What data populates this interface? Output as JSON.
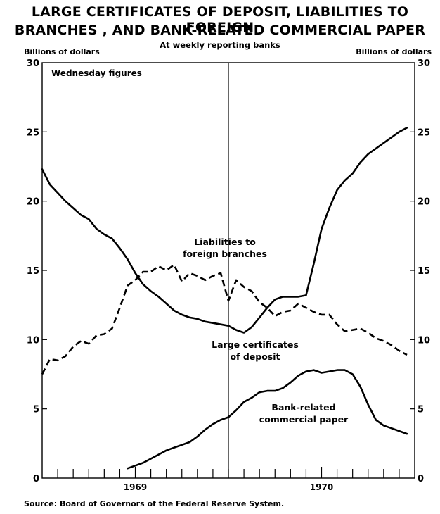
{
  "chart_data": {
    "type": "line",
    "title_line1": "LARGE CERTIFICATES OF DEPOSIT, LIABILITIES TO FOREIGN",
    "title_line2": "BRANCHES , AND BANK-RELATED COMMERCIAL PAPER",
    "subtitle": "At weekly reporting banks",
    "ylabel_left": "Billions of dollars",
    "ylabel_right": "Billions of dollars",
    "inset_note": "Wednesday figures",
    "source": "Source: Board of Governors of the Federal Reserve System.",
    "ylim": [
      0,
      30
    ],
    "xlim": [
      0,
      24
    ],
    "y_ticks": [
      "0",
      "5",
      "10",
      "15",
      "20",
      "25",
      "30"
    ],
    "x_year_labels": [
      {
        "label": "1969",
        "x": 6
      },
      {
        "label": "1970",
        "x": 18
      }
    ],
    "divider_x": 12,
    "series": [
      {
        "name": "Large certificates of deposit",
        "label_lines": [
          "Large certificates",
          "of deposit"
        ],
        "style": "solid",
        "x": [
          0,
          0.5,
          1,
          1.5,
          2,
          2.5,
          3,
          3.5,
          4,
          4.5,
          5,
          5.5,
          6,
          6.5,
          7,
          7.5,
          8,
          8.5,
          9,
          9.5,
          10,
          10.5,
          11,
          11.5,
          12,
          12.5,
          13,
          13.5,
          14,
          14.5,
          15,
          15.5,
          16,
          16.5,
          17,
          17.5,
          18,
          18.5,
          19,
          19.5,
          20,
          20.5,
          21,
          21.5,
          22,
          22.5,
          23,
          23.5
        ],
        "values": [
          22.3,
          21.2,
          20.6,
          20.0,
          19.5,
          19.0,
          18.7,
          18.0,
          17.6,
          17.3,
          16.6,
          15.8,
          14.8,
          14.0,
          13.5,
          13.1,
          12.6,
          12.1,
          11.8,
          11.6,
          11.5,
          11.3,
          11.2,
          11.1,
          11.0,
          10.7,
          10.5,
          10.9,
          11.6,
          12.3,
          12.9,
          13.1,
          13.1,
          13.1,
          13.2,
          15.5,
          18.0,
          19.5,
          20.8,
          21.5,
          22.0,
          22.8,
          23.4,
          23.8,
          24.2,
          24.6,
          25.0,
          25.3
        ]
      },
      {
        "name": "Liabilities to foreign branches",
        "label_lines": [
          "Liabilities to",
          "foreign branches"
        ],
        "style": "dashed",
        "x": [
          0,
          0.5,
          1,
          1.5,
          2,
          2.5,
          3,
          3.5,
          4,
          4.5,
          5,
          5.5,
          6,
          6.5,
          7,
          7.5,
          8,
          8.5,
          9,
          9.5,
          10,
          10.5,
          11,
          11.5,
          12,
          12.5,
          13,
          13.5,
          14,
          14.5,
          15,
          15.5,
          16,
          16.5,
          17,
          17.5,
          18,
          18.5,
          19,
          19.5,
          20,
          20.5,
          21,
          21.5,
          22,
          22.5,
          23,
          23.5
        ],
        "values": [
          7.5,
          8.6,
          8.5,
          8.8,
          9.5,
          9.9,
          9.7,
          10.3,
          10.4,
          10.8,
          12.3,
          13.9,
          14.3,
          14.9,
          14.9,
          15.3,
          15.0,
          15.4,
          14.2,
          14.8,
          14.6,
          14.3,
          14.6,
          14.8,
          12.8,
          14.3,
          13.8,
          13.5,
          12.7,
          12.3,
          11.7,
          12.0,
          12.1,
          12.6,
          12.3,
          12.0,
          11.8,
          11.8,
          11.1,
          10.6,
          10.7,
          10.8,
          10.5,
          10.1,
          9.9,
          9.6,
          9.2,
          8.9
        ]
      },
      {
        "name": "Bank-related commercial paper",
        "label_lines": [
          "Bank-related",
          "commercial paper"
        ],
        "style": "solid",
        "x": [
          5.5,
          6,
          6.5,
          7,
          7.5,
          8,
          8.5,
          9,
          9.5,
          10,
          10.5,
          11,
          11.5,
          12,
          12.5,
          13,
          13.5,
          14,
          14.5,
          15,
          15.5,
          16,
          16.5,
          17,
          17.5,
          18,
          18.5,
          19,
          19.5,
          20,
          20.5,
          21,
          21.5,
          22,
          22.5,
          23,
          23.5
        ],
        "values": [
          0.7,
          0.9,
          1.1,
          1.4,
          1.7,
          2.0,
          2.2,
          2.4,
          2.6,
          3.0,
          3.5,
          3.9,
          4.2,
          4.4,
          4.9,
          5.5,
          5.8,
          6.2,
          6.3,
          6.3,
          6.5,
          6.9,
          7.4,
          7.7,
          7.8,
          7.6,
          7.7,
          7.8,
          7.8,
          7.5,
          6.6,
          5.3,
          4.2,
          3.8,
          3.6,
          3.4,
          3.2
        ]
      }
    ]
  }
}
